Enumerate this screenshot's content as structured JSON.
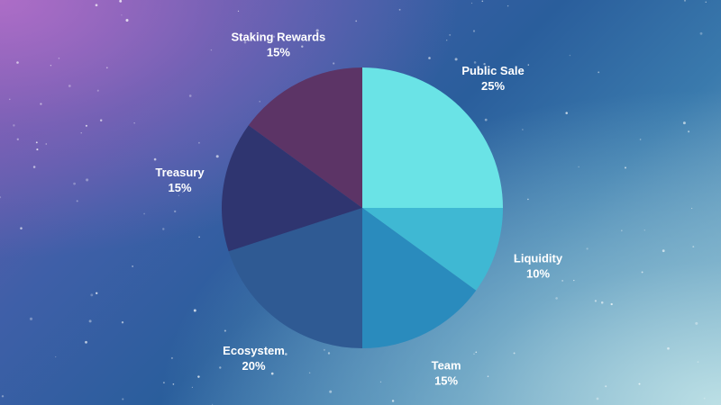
{
  "chart_data": {
    "type": "pie",
    "title": "",
    "slices": [
      {
        "label": "Public Sale",
        "value": 25,
        "value_label": "25%",
        "color": "#6ae3e6"
      },
      {
        "label": "Liquidity",
        "value": 10,
        "value_label": "10%",
        "color": "#3fb8d3"
      },
      {
        "label": "Team",
        "value": 15,
        "value_label": "15%",
        "color": "#2a8bbd"
      },
      {
        "label": "Ecosystem",
        "value": 20,
        "value_label": "20%",
        "color": "#2f5a93"
      },
      {
        "label": "Treasury",
        "value": 15,
        "value_label": "15%",
        "color": "#2f3570"
      },
      {
        "label": "Staking Rewards",
        "value": 15,
        "value_label": "15%",
        "color": "#5c3466"
      }
    ],
    "start_angle": "12 o'clock",
    "direction": "clockwise",
    "legend": "none"
  },
  "colors": {
    "label_text": "#ffffff",
    "background_top_left": "#b06ec8",
    "background_center": "#2a5e9c",
    "background_bottom_right": "#bde1e6"
  }
}
